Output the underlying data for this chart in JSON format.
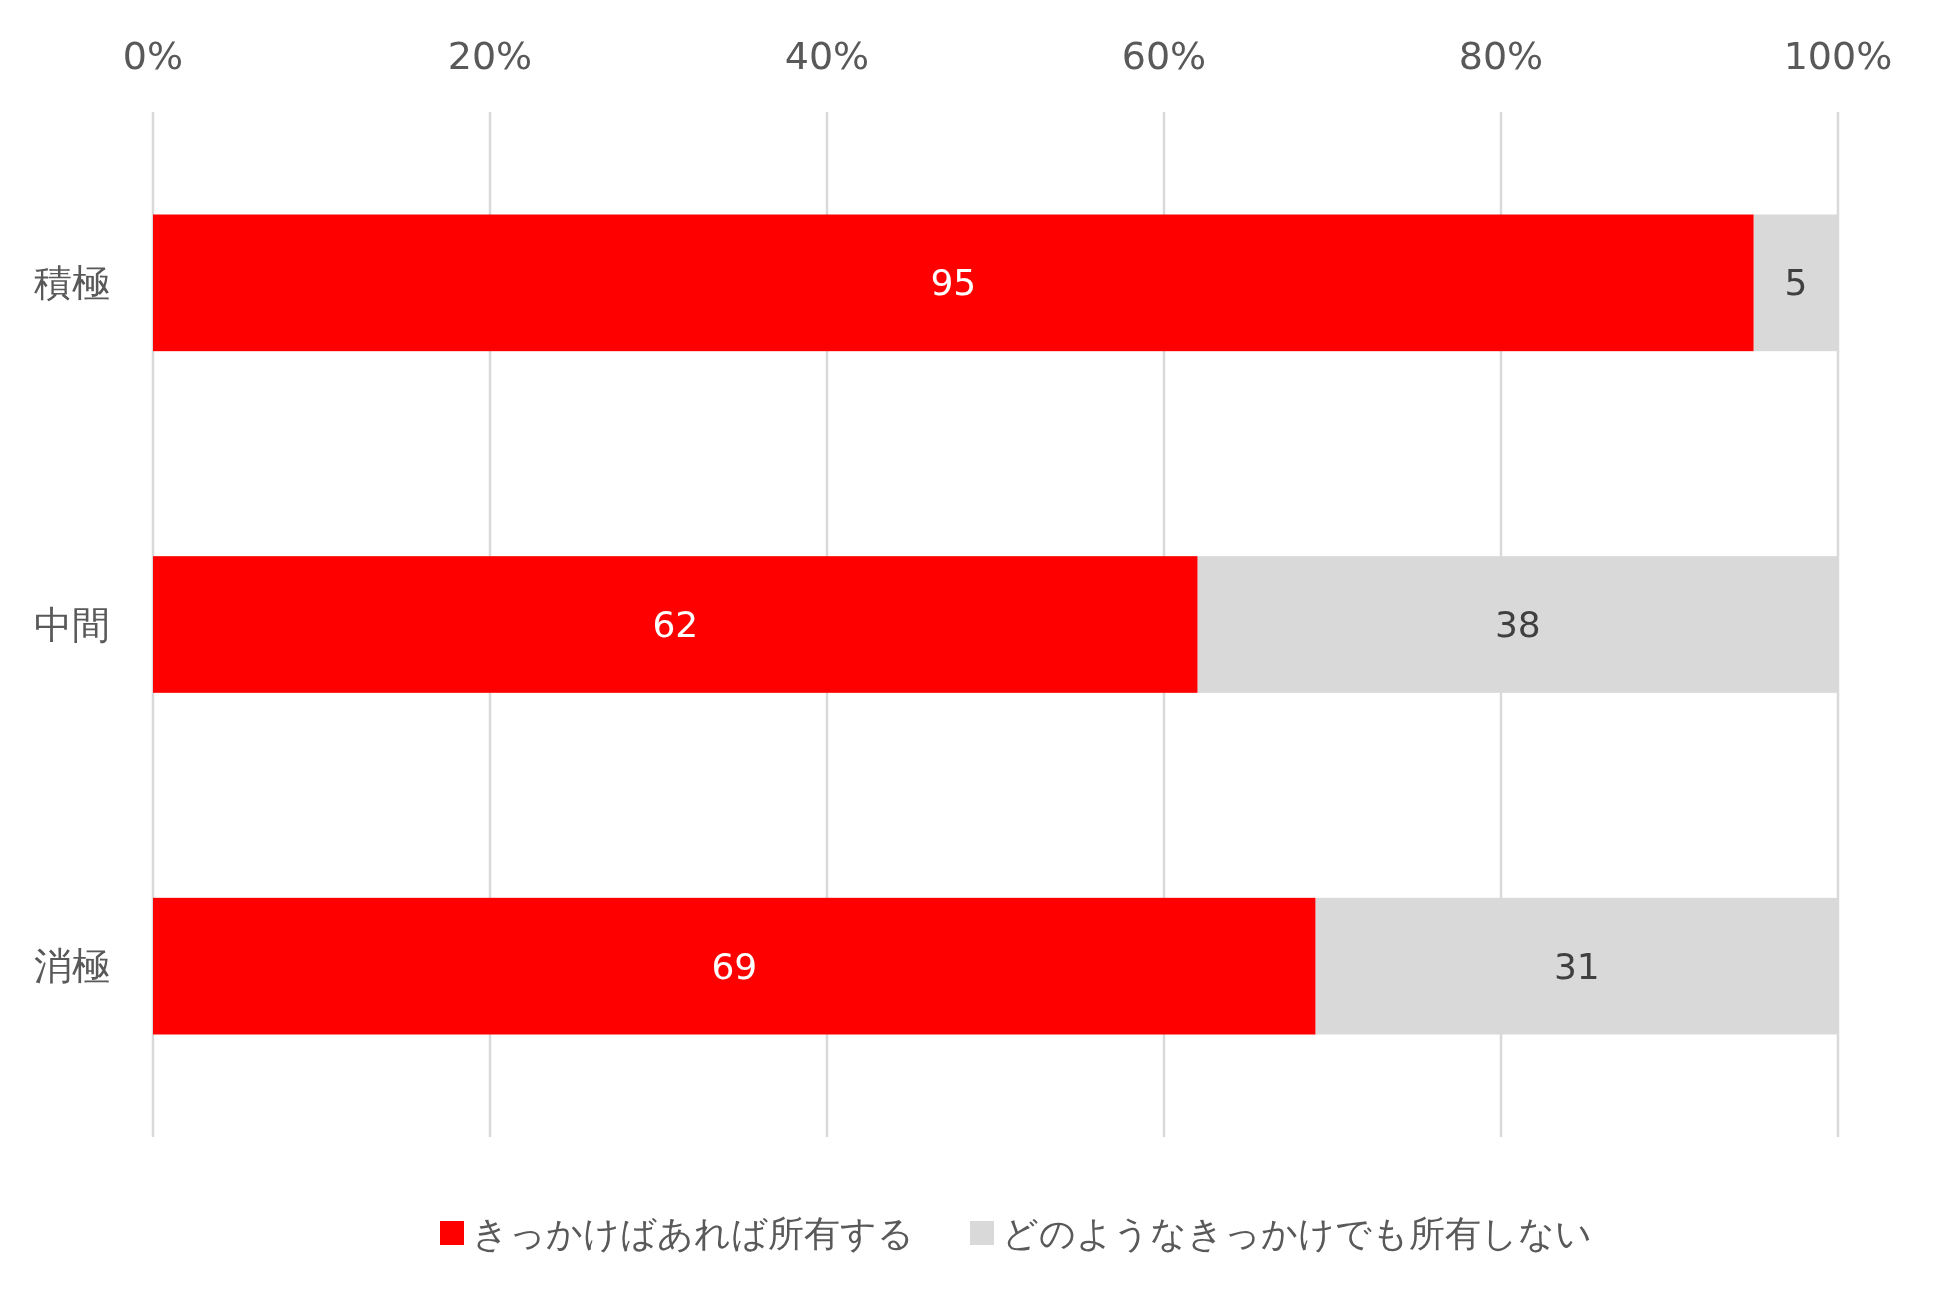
{
  "chart_data": {
    "type": "bar",
    "orientation": "horizontal",
    "stacked": true,
    "categories": [
      "積極",
      "中間",
      "消極"
    ],
    "series": [
      {
        "name": "きっかけばあれば所有する",
        "color": "#ff0000",
        "values": [
          95,
          62,
          69
        ]
      },
      {
        "name": "どのようなきっかけでも所有しない",
        "color": "#d9d9d9",
        "values": [
          5,
          38,
          31
        ]
      }
    ],
    "xlim": [
      0,
      100
    ],
    "xticks": [
      {
        "value": 0,
        "label": "0%"
      },
      {
        "value": 20,
        "label": "20%"
      },
      {
        "value": 40,
        "label": "40%"
      },
      {
        "value": 60,
        "label": "60%"
      },
      {
        "value": 80,
        "label": "80%"
      },
      {
        "value": 100,
        "label": "100%"
      }
    ],
    "grid": "x",
    "legend": "bottom",
    "data_labels": true
  }
}
